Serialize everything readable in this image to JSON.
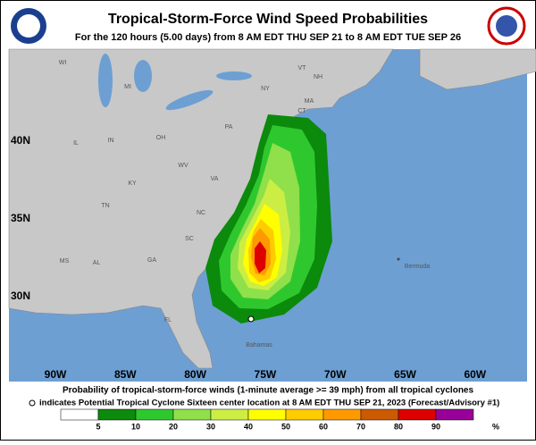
{
  "header": {
    "title": "Tropical-Storm-Force Wind Speed Probabilities",
    "subtitle": "For the 120 hours (5.00 days) from 8 AM EDT THU SEP 21 to 8 AM EDT TUE SEP 26"
  },
  "map": {
    "lat_labels": [
      "40N",
      "35N",
      "30N"
    ],
    "lon_labels": [
      "90W",
      "85W",
      "80W",
      "75W",
      "70W",
      "65W",
      "60W"
    ],
    "places": [
      "WI",
      "MI",
      "NY",
      "VT",
      "NH",
      "MA",
      "CT",
      "PA",
      "OH",
      "IN",
      "IL",
      "WV",
      "VA",
      "KY",
      "TN",
      "NC",
      "SC",
      "GA",
      "AL",
      "MS",
      "FL",
      "Bermuda",
      "Bahamas"
    ]
  },
  "footer": {
    "caption": "Probability of tropical-storm-force winds (1-minute average >= 39 mph) from all tropical cyclones",
    "note": "indicates Potential Tropical Cyclone Sixteen center location at 8 AM EDT THU SEP 21, 2023 (Forecast/Advisory #1)"
  },
  "legend": {
    "labels": [
      "5",
      "10",
      "20",
      "30",
      "40",
      "50",
      "60",
      "70",
      "80",
      "90",
      "%"
    ],
    "colors": [
      "#ffffff",
      "#0b8a0b",
      "#2ec82e",
      "#8fe04a",
      "#ccee44",
      "#ffff00",
      "#ffcc00",
      "#ff9900",
      "#cc5a00",
      "#dd0000",
      "#990099"
    ]
  }
}
